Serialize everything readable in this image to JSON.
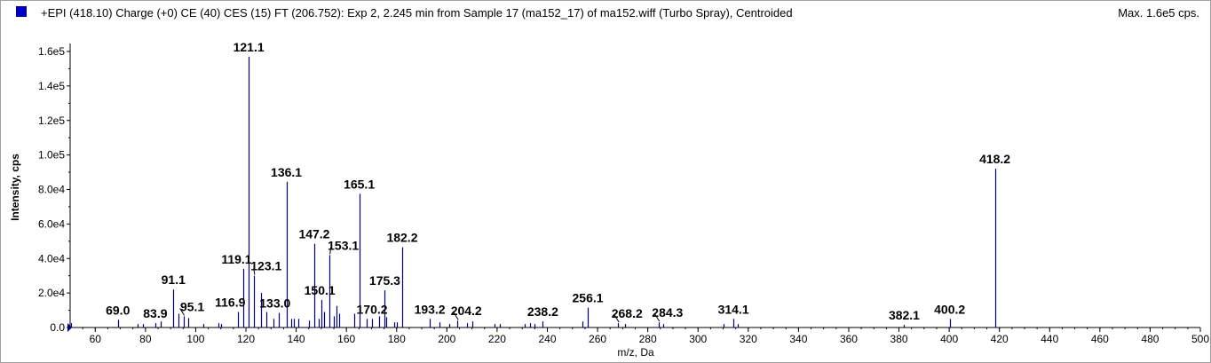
{
  "header": {
    "title": "+EPI (418.10) Charge (+0) CE (40) CES (15) FT (206.752): Exp 2, 2.245 min from Sample 17 (ma152_17) of ma152.wiff (Turbo Spray), Centroided",
    "max_label": "Max. 1.6e5 cps."
  },
  "colors": {
    "series": "#000080",
    "legend_box": "#0000cc",
    "axis": "#000000"
  },
  "chart_data": {
    "type": "bar",
    "xlabel": "m/z, Da",
    "ylabel": "Intensity, cps",
    "xlim": [
      50,
      500
    ],
    "ylim": [
      0,
      160000
    ],
    "x_ticks": [
      60,
      80,
      100,
      120,
      140,
      160,
      180,
      200,
      220,
      240,
      260,
      280,
      300,
      320,
      340,
      360,
      380,
      400,
      420,
      440,
      460,
      480,
      500
    ],
    "y_ticks": [
      {
        "value": 0,
        "label": "0.0"
      },
      {
        "value": 20000,
        "label": "2.0e4"
      },
      {
        "value": 40000,
        "label": "4.0e4"
      },
      {
        "value": 60000,
        "label": "6.0e4"
      },
      {
        "value": 80000,
        "label": "8.0e4"
      },
      {
        "value": 100000,
        "label": "1.0e5"
      },
      {
        "value": 120000,
        "label": "1.2e5"
      },
      {
        "value": 140000,
        "label": "1.4e5"
      },
      {
        "value": 160000,
        "label": "1.6e5"
      }
    ],
    "peaks": [
      {
        "mz": 50.5,
        "y": 2500
      },
      {
        "mz": 69.0,
        "y": 4500
      },
      {
        "mz": 77.0,
        "y": 2000
      },
      {
        "mz": 79.0,
        "y": 2000
      },
      {
        "mz": 83.9,
        "y": 2500
      },
      {
        "mz": 86.0,
        "y": 3500
      },
      {
        "mz": 91.1,
        "y": 22000
      },
      {
        "mz": 93.0,
        "y": 8000
      },
      {
        "mz": 95.1,
        "y": 6500
      },
      {
        "mz": 97.0,
        "y": 5500
      },
      {
        "mz": 103.0,
        "y": 2000
      },
      {
        "mz": 109.0,
        "y": 2500
      },
      {
        "mz": 110.0,
        "y": 2000
      },
      {
        "mz": 116.9,
        "y": 9000
      },
      {
        "mz": 119.1,
        "y": 34000
      },
      {
        "mz": 121.1,
        "y": 157000
      },
      {
        "mz": 123.1,
        "y": 30000
      },
      {
        "mz": 126.0,
        "y": 20000
      },
      {
        "mz": 128.0,
        "y": 9000
      },
      {
        "mz": 131.0,
        "y": 5000
      },
      {
        "mz": 133.0,
        "y": 8500
      },
      {
        "mz": 136.1,
        "y": 84500
      },
      {
        "mz": 138.0,
        "y": 5000
      },
      {
        "mz": 139.0,
        "y": 5000
      },
      {
        "mz": 141.0,
        "y": 5000
      },
      {
        "mz": 145.0,
        "y": 4000
      },
      {
        "mz": 147.2,
        "y": 48500
      },
      {
        "mz": 149.0,
        "y": 5000
      },
      {
        "mz": 150.1,
        "y": 16000
      },
      {
        "mz": 151.0,
        "y": 9000
      },
      {
        "mz": 153.1,
        "y": 42000
      },
      {
        "mz": 155.0,
        "y": 6500
      },
      {
        "mz": 156.0,
        "y": 12500
      },
      {
        "mz": 157.0,
        "y": 8000
      },
      {
        "mz": 163.0,
        "y": 8000
      },
      {
        "mz": 165.1,
        "y": 77500
      },
      {
        "mz": 168.0,
        "y": 5000
      },
      {
        "mz": 170.2,
        "y": 5000
      },
      {
        "mz": 173.0,
        "y": 6500
      },
      {
        "mz": 175.3,
        "y": 21500
      },
      {
        "mz": 176.0,
        "y": 6000
      },
      {
        "mz": 179.0,
        "y": 3000
      },
      {
        "mz": 180.0,
        "y": 3000
      },
      {
        "mz": 182.2,
        "y": 46500
      },
      {
        "mz": 193.2,
        "y": 5000
      },
      {
        "mz": 197.0,
        "y": 3000
      },
      {
        "mz": 201.0,
        "y": 2000
      },
      {
        "mz": 204.2,
        "y": 4000
      },
      {
        "mz": 208.0,
        "y": 2500
      },
      {
        "mz": 210.0,
        "y": 3500
      },
      {
        "mz": 219.0,
        "y": 2000
      },
      {
        "mz": 221.0,
        "y": 2000
      },
      {
        "mz": 231.0,
        "y": 2000
      },
      {
        "mz": 233.0,
        "y": 2500
      },
      {
        "mz": 235.0,
        "y": 2000
      },
      {
        "mz": 238.2,
        "y": 3500
      },
      {
        "mz": 254.0,
        "y": 3500
      },
      {
        "mz": 256.1,
        "y": 11500
      },
      {
        "mz": 268.2,
        "y": 2500
      },
      {
        "mz": 271.0,
        "y": 2000
      },
      {
        "mz": 284.3,
        "y": 3000
      },
      {
        "mz": 286.0,
        "y": 2000
      },
      {
        "mz": 310.0,
        "y": 2000
      },
      {
        "mz": 314.1,
        "y": 5000
      },
      {
        "mz": 316.0,
        "y": 2000
      },
      {
        "mz": 382.1,
        "y": 1500
      },
      {
        "mz": 400.2,
        "y": 5000
      },
      {
        "mz": 418.2,
        "y": 92000
      }
    ],
    "annotations": [
      {
        "label": "69.0",
        "mz": 69.0,
        "y": 4500,
        "dx": 0,
        "dy": -6
      },
      {
        "label": "83.9",
        "mz": 83.9,
        "y": 2500,
        "dx": 0,
        "dy": -6
      },
      {
        "label": "91.1",
        "mz": 91.1,
        "y": 22000,
        "dx": 0,
        "dy": -6
      },
      {
        "label": "95.1",
        "mz": 95.1,
        "y": 6500,
        "dx": 10,
        "dy": -6,
        "leader": true
      },
      {
        "label": "116.9",
        "mz": 116.9,
        "y": 9000,
        "dx": -9,
        "dy": -6
      },
      {
        "label": "119.1",
        "mz": 119.1,
        "y": 34000,
        "dx": -8,
        "dy": -6
      },
      {
        "label": "121.1",
        "mz": 121.1,
        "y": 157000,
        "dx": 0,
        "dy": -6
      },
      {
        "label": "123.1",
        "mz": 123.1,
        "y": 30000,
        "dx": 14,
        "dy": -6,
        "leader": true
      },
      {
        "label": "133.0",
        "mz": 133.0,
        "y": 8500,
        "dx": -4,
        "dy": -6
      },
      {
        "label": "136.1",
        "mz": 136.1,
        "y": 84500,
        "dx": 0,
        "dy": -6
      },
      {
        "label": "147.2",
        "mz": 147.2,
        "y": 48500,
        "dx": 0,
        "dy": -6
      },
      {
        "label": "150.1",
        "mz": 150.1,
        "y": 16000,
        "dx": -2,
        "dy": -6
      },
      {
        "label": "153.1",
        "mz": 153.1,
        "y": 42000,
        "dx": 16,
        "dy": -6,
        "leader": true
      },
      {
        "label": "165.1",
        "mz": 165.1,
        "y": 77500,
        "dx": 0,
        "dy": -6
      },
      {
        "label": "170.2",
        "mz": 170.2,
        "y": 5000,
        "dx": 0,
        "dy": -6
      },
      {
        "label": "175.3",
        "mz": 175.3,
        "y": 21500,
        "dx": 0,
        "dy": -6
      },
      {
        "label": "182.2",
        "mz": 182.2,
        "y": 46500,
        "dx": 0,
        "dy": -6
      },
      {
        "label": "193.2",
        "mz": 193.2,
        "y": 5000,
        "dx": 0,
        "dy": -6
      },
      {
        "label": "204.2",
        "mz": 204.2,
        "y": 4000,
        "dx": 10,
        "dy": -6,
        "leader": true
      },
      {
        "label": "238.2",
        "mz": 238.2,
        "y": 3500,
        "dx": 0,
        "dy": -6
      },
      {
        "label": "256.1",
        "mz": 256.1,
        "y": 11500,
        "dx": 0,
        "dy": -6
      },
      {
        "label": "268.2",
        "mz": 268.2,
        "y": 2500,
        "dx": 10,
        "dy": -6,
        "leader": true
      },
      {
        "label": "284.3",
        "mz": 284.3,
        "y": 3000,
        "dx": 10,
        "dy": -6,
        "leader": true
      },
      {
        "label": "314.1",
        "mz": 314.1,
        "y": 5000,
        "dx": 0,
        "dy": -6
      },
      {
        "label": "382.1",
        "mz": 382.1,
        "y": 1500,
        "dx": 0,
        "dy": -6
      },
      {
        "label": "400.2",
        "mz": 400.2,
        "y": 5000,
        "dx": 0,
        "dy": -6
      },
      {
        "label": "418.2",
        "mz": 418.2,
        "y": 92000,
        "dx": 0,
        "dy": -6
      }
    ]
  }
}
